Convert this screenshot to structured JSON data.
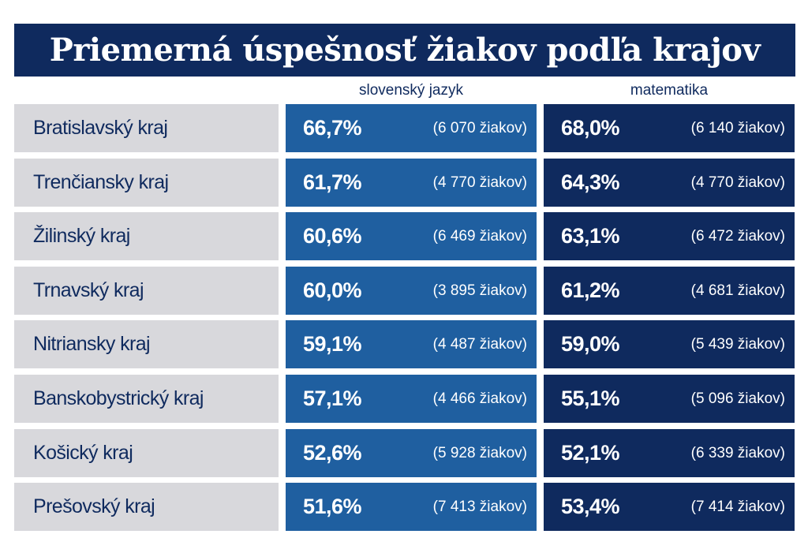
{
  "chart_data": {
    "type": "table",
    "title": "Priemerná úspešnosť žiakov podľa krajov",
    "columns": [
      "slovenský jazyk",
      "matematika"
    ],
    "rows": [
      {
        "region": "Bratislavský kraj",
        "sj_pct": "66,7%",
        "sj_count": "(6 070 žiakov)",
        "mat_pct": "68,0%",
        "mat_count": "(6 140 žiakov)"
      },
      {
        "region": "Trenčiansky kraj",
        "sj_pct": "61,7%",
        "sj_count": "(4 770 žiakov)",
        "mat_pct": "64,3%",
        "mat_count": "(4 770 žiakov)"
      },
      {
        "region": "Žilinský kraj",
        "sj_pct": "60,6%",
        "sj_count": "(6 469 žiakov)",
        "mat_pct": "63,1%",
        "mat_count": "(6 472 žiakov)"
      },
      {
        "region": "Trnavský kraj",
        "sj_pct": "60,0%",
        "sj_count": "(3 895 žiakov)",
        "mat_pct": "61,2%",
        "mat_count": "(4 681 žiakov)"
      },
      {
        "region": "Nitriansky kraj",
        "sj_pct": "59,1%",
        "sj_count": "(4 487 žiakov)",
        "mat_pct": "59,0%",
        "mat_count": "(5 439 žiakov)"
      },
      {
        "region": "Banskobystrický kraj",
        "sj_pct": "57,1%",
        "sj_count": "(4 466 žiakov)",
        "mat_pct": "55,1%",
        "mat_count": "(5 096 žiakov)"
      },
      {
        "region": "Košický kraj",
        "sj_pct": "52,6%",
        "sj_count": "(5 928 žiakov)",
        "mat_pct": "52,1%",
        "mat_count": "(6 339 žiakov)"
      },
      {
        "region": "Prešovský kraj",
        "sj_pct": "51,6%",
        "sj_count": "(7 413 žiakov)",
        "mat_pct": "53,4%",
        "mat_count": "(7 414 žiakov)"
      }
    ]
  },
  "colors": {
    "title_bg": "#0f2a5e",
    "region_bg": "#d8d8dc",
    "sj_bg": "#1f5fa0",
    "mat_bg": "#0f2a5e"
  }
}
